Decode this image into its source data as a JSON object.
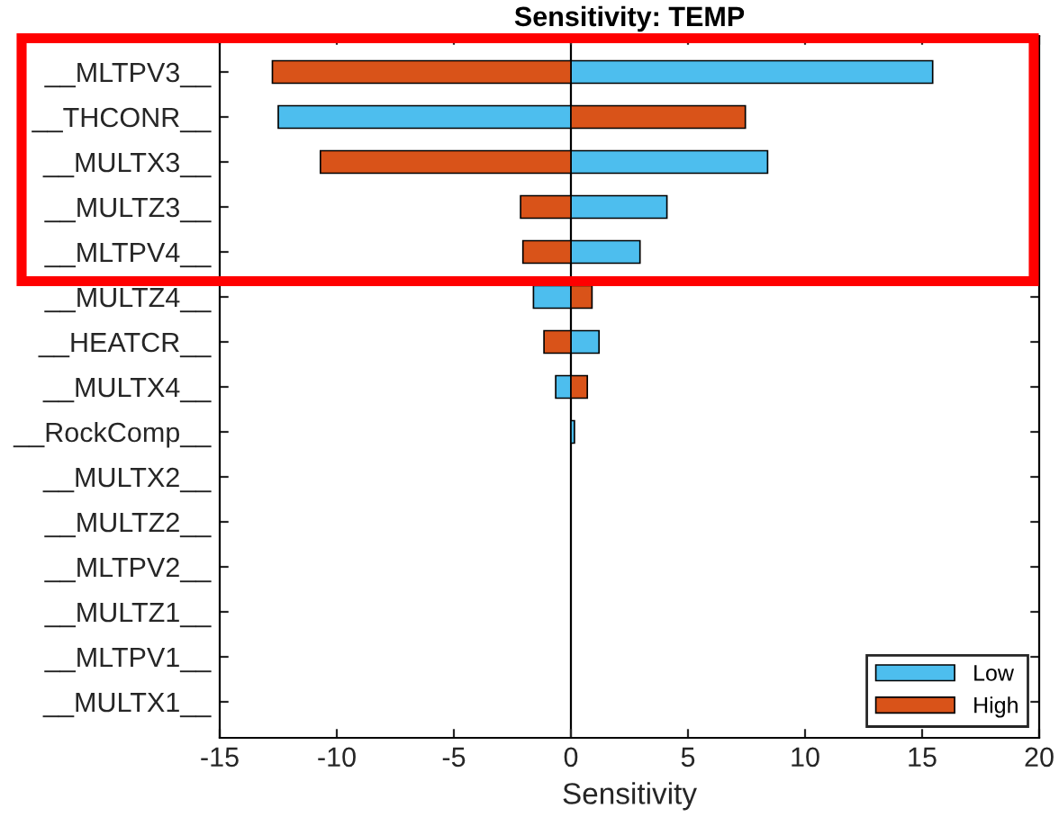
{
  "chart_data": {
    "type": "bar",
    "orientation": "horizontal",
    "title": "Sensitivity: TEMP",
    "xlabel": "Sensitivity",
    "categories": [
      "__MLTPV3__",
      "__THCONR__",
      "__MULTX3__",
      "__MULTZ3__",
      "__MLTPV4__",
      "__MULTZ4__",
      "__HEATCR__",
      "__MULTX4__",
      "__RockComp__",
      "__MULTX2__",
      "__MULTZ2__",
      "__MLTPV2__",
      "__MULTZ1__",
      "__MLTPV1__",
      "__MULTX1__"
    ],
    "series": [
      {
        "name": "Low",
        "color": "#4dbeee",
        "values": [
          15.45,
          -12.5,
          8.4,
          4.1,
          2.95,
          -1.6,
          1.2,
          -0.65,
          0.15,
          null,
          null,
          null,
          null,
          null,
          null
        ]
      },
      {
        "name": "High",
        "color": "#d95319",
        "values": [
          -12.75,
          7.45,
          -10.7,
          -2.15,
          -2.05,
          0.9,
          -1.15,
          0.7,
          null,
          null,
          null,
          null,
          null,
          null,
          null
        ]
      }
    ],
    "stacked": true,
    "xlim": [
      -15,
      20
    ],
    "xticks": [
      -15,
      -10,
      -5,
      0,
      5,
      10,
      15,
      20
    ],
    "ref_lines": [
      {
        "axis": "x",
        "value": 0,
        "color": "#000000"
      }
    ],
    "grid": false,
    "legend": "bottom right"
  }
}
